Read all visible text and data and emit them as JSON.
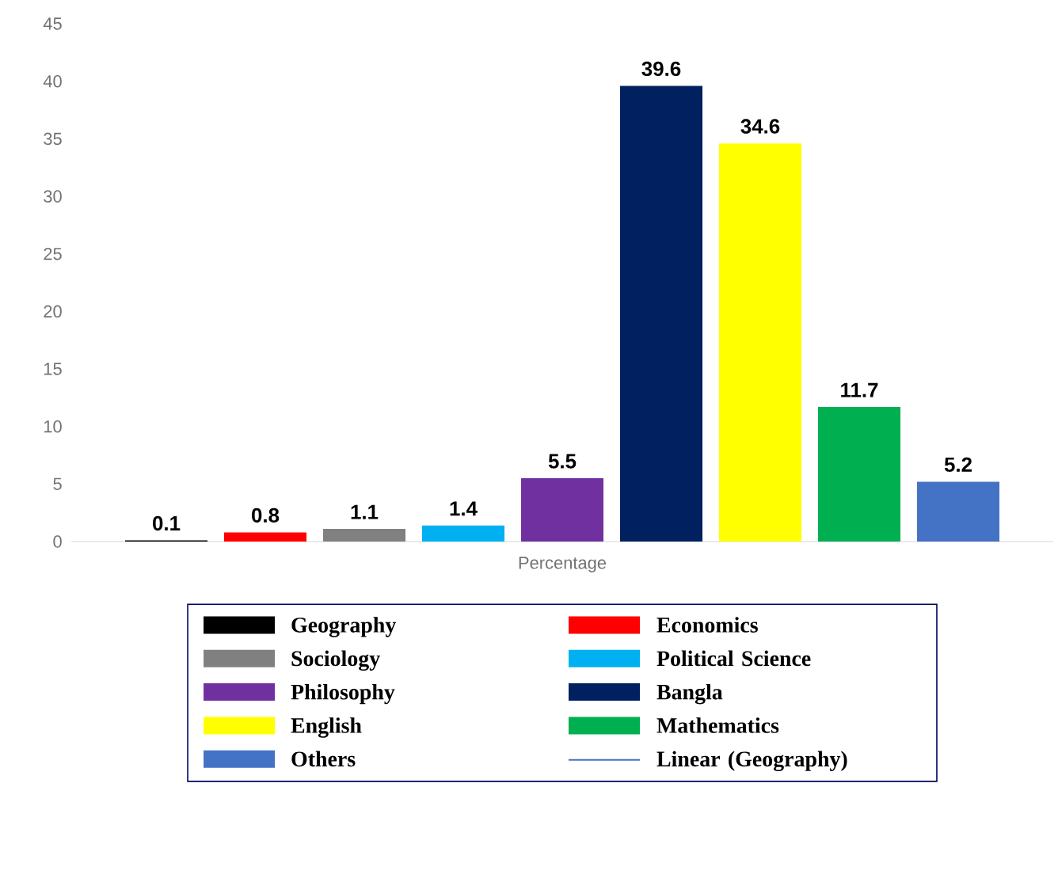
{
  "chart_data": {
    "type": "bar",
    "categories": [
      "Percentage"
    ],
    "series": [
      {
        "name": "Geography",
        "color": "#000000",
        "values": [
          0.1
        ]
      },
      {
        "name": "Economics",
        "color": "#ff0000",
        "values": [
          0.8
        ]
      },
      {
        "name": "Sociology",
        "color": "#808080",
        "values": [
          1.1
        ]
      },
      {
        "name": "Political Science",
        "color": "#00b0f0",
        "values": [
          1.4
        ]
      },
      {
        "name": "Philosophy",
        "color": "#7030a0",
        "values": [
          5.5
        ]
      },
      {
        "name": "Bangla",
        "color": "#002060",
        "values": [
          39.6
        ]
      },
      {
        "name": "English",
        "color": "#ffff00",
        "values": [
          34.6
        ]
      },
      {
        "name": "Mathematics",
        "color": "#00b050",
        "values": [
          11.7
        ]
      },
      {
        "name": "Others",
        "color": "#4472c4",
        "values": [
          5.2
        ]
      },
      {
        "name": "Linear (Geography)",
        "type": "line",
        "color": "#4472c4",
        "values": [
          null
        ]
      }
    ],
    "ylim": [
      0,
      45
    ],
    "yticks": [
      0,
      5,
      10,
      15,
      20,
      25,
      30,
      35,
      40,
      45
    ],
    "grid": false,
    "legend": "bottom",
    "data_labels": true
  }
}
